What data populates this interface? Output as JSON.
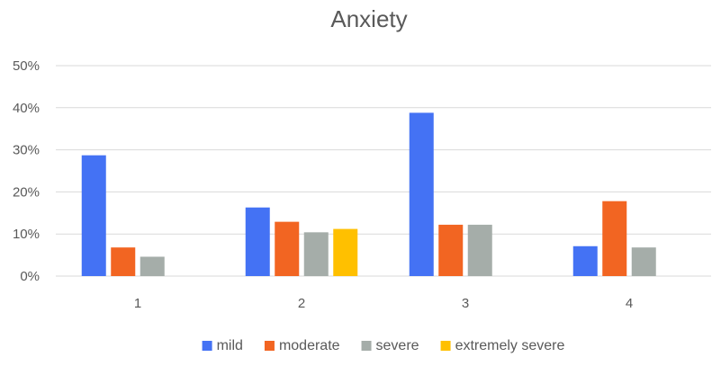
{
  "chart_data": {
    "type": "bar",
    "title": "Anxiety",
    "xlabel": "",
    "ylabel": "",
    "categories": [
      "1",
      "2",
      "3",
      "4"
    ],
    "ylim": [
      0,
      50
    ],
    "y_ticks": [
      0,
      10,
      20,
      30,
      40,
      50
    ],
    "y_tick_labels": [
      "0%",
      "10%",
      "20%",
      "30%",
      "40%",
      "50%"
    ],
    "grid": true,
    "legend_position": "bottom",
    "series": [
      {
        "name": "mild",
        "color": "#4472F4",
        "values": [
          28.7,
          16.3,
          38.8,
          7.1
        ]
      },
      {
        "name": "moderate",
        "color": "#F26522",
        "values": [
          6.8,
          12.9,
          12.2,
          17.8
        ]
      },
      {
        "name": "severe",
        "color": "#A5ADA9",
        "values": [
          4.6,
          10.4,
          12.2,
          6.8
        ]
      },
      {
        "name": "extremely severe",
        "color": "#FFC000",
        "values": [
          null,
          11.2,
          null,
          null
        ]
      }
    ]
  }
}
